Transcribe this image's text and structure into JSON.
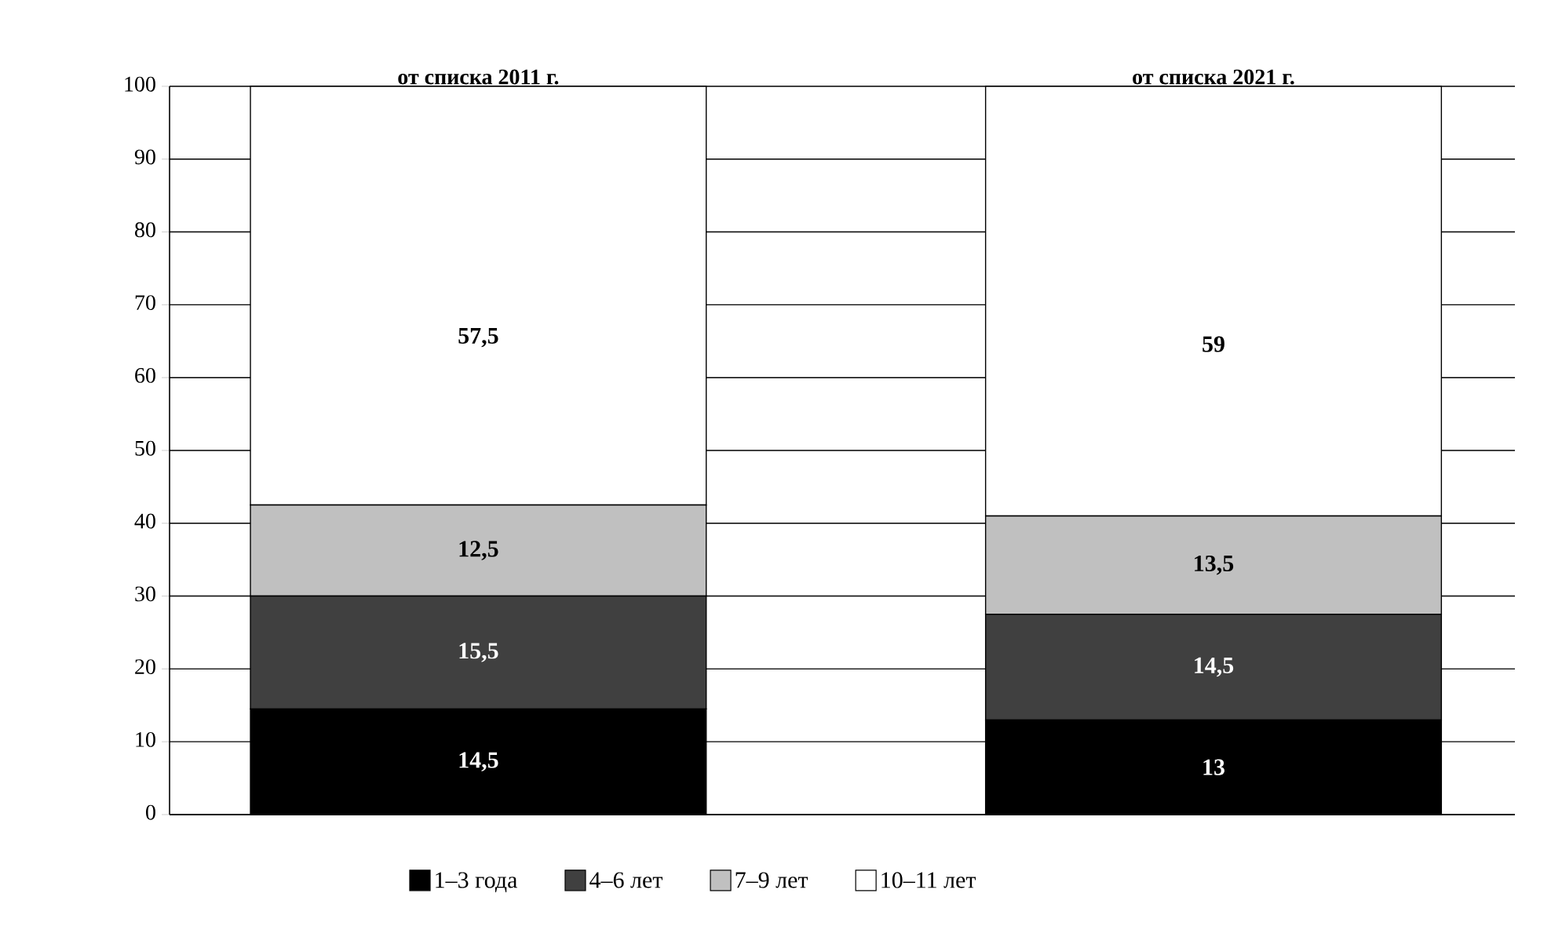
{
  "chart_data": {
    "type": "bar",
    "stacked": true,
    "categories": [
      "от списка 2011 г.",
      "от списка 2021 г."
    ],
    "series": [
      {
        "name": "1–3 года",
        "color": "#000000",
        "values": [
          14.5,
          13
        ],
        "value_labels": [
          "14,5",
          "13"
        ]
      },
      {
        "name": "4–6 лет",
        "color": "#404040",
        "values": [
          15.5,
          14.5
        ],
        "value_labels": [
          "15,5",
          "14,5"
        ]
      },
      {
        "name": "7–9 лет",
        "color": "#c0c0c0",
        "values": [
          12.5,
          13.5
        ],
        "value_labels": [
          "12,5",
          "13,5"
        ]
      },
      {
        "name": "10–11 лет",
        "color": "#ffffff",
        "values": [
          57.5,
          59
        ],
        "value_labels": [
          "57,5",
          "59"
        ]
      }
    ],
    "ylim": [
      0,
      100
    ],
    "yticks": [
      0,
      10,
      20,
      30,
      40,
      50,
      60,
      70,
      80,
      90,
      100
    ],
    "grid": "y",
    "legend": "bottom"
  }
}
